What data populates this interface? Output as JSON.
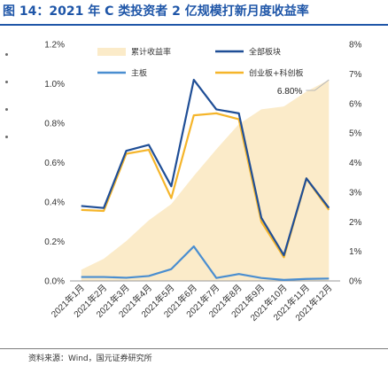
{
  "figure": {
    "title": "图 14：2021 年 C 类投资者 2 亿规模打新月度收益率",
    "source": "资料来源：Wind，国元证券研究所"
  },
  "colors": {
    "title": "#1f56a8",
    "area": "#fbebc9",
    "all_board": "#1f4e96",
    "main_board": "#4a8ed0",
    "chinext_star": "#f5b52a",
    "annotation_line": "#b8b8b8"
  },
  "chart_data": {
    "type": "line",
    "categories": [
      "2021年1月",
      "2021年2月",
      "2021年3月",
      "2021年4月",
      "2021年5月",
      "2021年6月",
      "2021年7月",
      "2021年8月",
      "2021年9月",
      "2021年10月",
      "2021年11月",
      "2021年12月"
    ],
    "y_left": {
      "ticks": [
        "0.0%",
        "0.2%",
        "0.4%",
        "0.6%",
        "0.8%",
        "1.0%",
        "1.2%"
      ],
      "ylim": [
        0,
        1.2
      ],
      "unit": "%"
    },
    "y_right": {
      "ticks": [
        "0%",
        "1%",
        "2%",
        "3%",
        "4%",
        "5%",
        "6%",
        "7%",
        "8%"
      ],
      "ylim": [
        0,
        8
      ],
      "unit": "%"
    },
    "grid": false,
    "legend_position": "top",
    "series": [
      {
        "name": "累计收益率",
        "type": "area",
        "axis": "right",
        "values": [
          0.38,
          0.75,
          1.35,
          2.05,
          2.6,
          3.55,
          4.45,
          5.3,
          5.8,
          5.9,
          6.4,
          6.8
        ]
      },
      {
        "name": "全部板块",
        "type": "line",
        "axis": "left",
        "values": [
          0.38,
          0.37,
          0.66,
          0.69,
          0.48,
          1.02,
          0.87,
          0.85,
          0.32,
          0.13,
          0.52,
          0.37
        ]
      },
      {
        "name": "主板",
        "type": "line",
        "axis": "left",
        "values": [
          0.02,
          0.02,
          0.016,
          0.025,
          0.06,
          0.175,
          0.015,
          0.035,
          0.015,
          0.005,
          0.01,
          0.012
        ]
      },
      {
        "name": "创业板+科创板",
        "type": "line",
        "axis": "left",
        "values": [
          0.36,
          0.355,
          0.645,
          0.665,
          0.42,
          0.84,
          0.85,
          0.82,
          0.3,
          0.12,
          0.52,
          0.36
        ]
      }
    ],
    "annotations": [
      {
        "text": "6.80%",
        "series": "累计收益率",
        "category": "2021年12月"
      }
    ]
  }
}
